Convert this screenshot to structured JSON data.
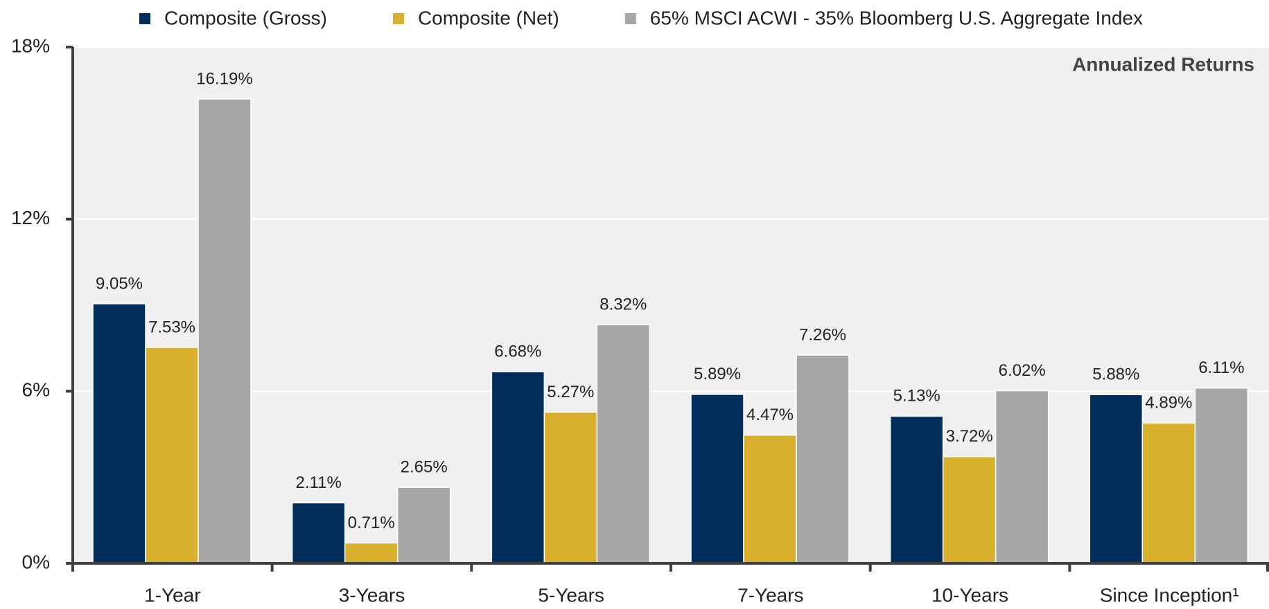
{
  "chart_data": {
    "type": "bar",
    "annotation": "Annualized Returns",
    "categories": [
      "1-Year",
      "3-Years",
      "5-Years",
      "7-Years",
      "10-Years",
      "Since Inception¹"
    ],
    "series": [
      {
        "name": "Composite (Gross)",
        "color": "#002d5a",
        "values": [
          9.05,
          2.11,
          6.68,
          5.89,
          5.13,
          5.88
        ],
        "value_labels": [
          "9.05%",
          "2.11%",
          "6.68%",
          "5.89%",
          "5.13%",
          "5.88%"
        ]
      },
      {
        "name": "Composite (Net)",
        "color": "#d9af2e",
        "values": [
          7.53,
          0.71,
          5.27,
          4.47,
          3.72,
          4.89
        ],
        "value_labels": [
          "7.53%",
          "0.71%",
          "5.27%",
          "4.47%",
          "3.72%",
          "4.89%"
        ]
      },
      {
        "name": "65% MSCI ACWI - 35% Bloomberg U.S. Aggregate Index",
        "color": "#a6a6a6",
        "values": [
          16.19,
          2.65,
          8.32,
          7.26,
          6.02,
          6.11
        ],
        "value_labels": [
          "16.19%",
          "2.65%",
          "8.32%",
          "7.26%",
          "6.02%",
          "6.11%"
        ]
      }
    ],
    "ylim": [
      0,
      18
    ],
    "yticks": [
      {
        "value": 0,
        "label": "0%"
      },
      {
        "value": 6,
        "label": "6%"
      },
      {
        "value": 12,
        "label": "12%"
      },
      {
        "value": 18,
        "label": "18%"
      }
    ],
    "grid": true,
    "legend": "top"
  }
}
